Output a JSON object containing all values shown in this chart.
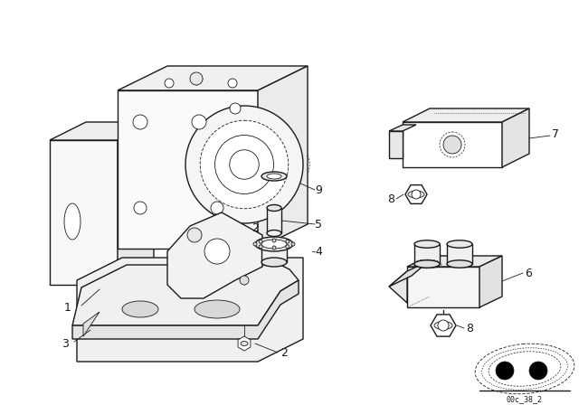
{
  "background_color": "#ffffff",
  "line_color": "#1a1a1a",
  "fig_width": 6.4,
  "fig_height": 4.48,
  "dpi": 100,
  "label_fs": 9,
  "footer_text": "00c_38_2"
}
